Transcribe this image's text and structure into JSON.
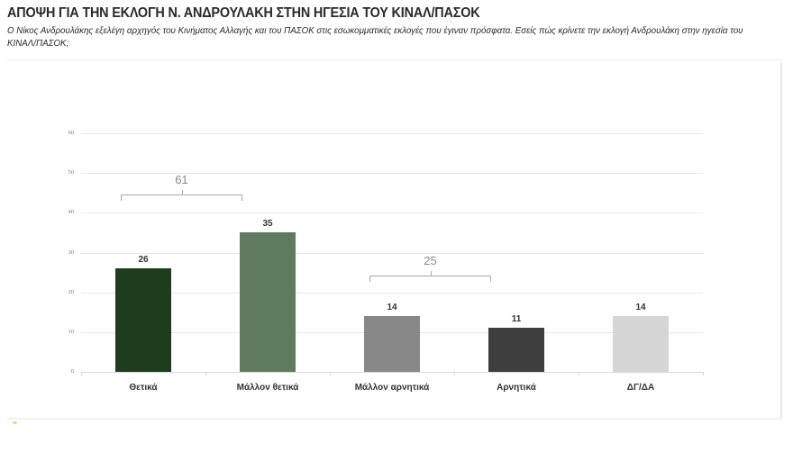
{
  "header": {
    "title": "ΑΠΟΨΗ ΓΙΑ ΤΗΝ ΕΚΛΟΓΗ Ν. ΑΝΔΡΟΥΛΑΚΗ ΣΤΗΝ ΗΓΕΣΙΑ ΤΟΥ ΚΙΝΑΛ/ΠΑΣΟΚ",
    "subtitle": "Ο Νίκος Ανδρουλάκης εξελέγη αρχηγός του Κινήματος Αλλαγής και του ΠΑΣΟΚ στις εσωκομματικές εκλογές που έγιναν πρόσφατα. Εσείς πώς κρίνετε την εκλογή Ανδρουλάκη στην ηγεσία του ΚΙΝΑΛ/ΠΑΣΟΚ;"
  },
  "chart_data": {
    "type": "bar",
    "title": "ΑΠΟΨΗ ΓΙΑ ΤΗΝ ΕΚΛΟΓΗ Ν. ΑΝΔΡΟΥΛΑΚΗ ΣΤΗΝ ΗΓΕΣΙΑ ΤΟΥ ΚΙΝΑΛ/ΠΑΣΟΚ",
    "subtitle": "Ο Νίκος Ανδρουλάκης εξελέγη αρχηγός του Κινήματος Αλλαγής και του ΠΑΣΟΚ στις εσωκομματικές εκλογές που έγιναν πρόσφατα. Εσείς πώς κρίνετε την εκλογή Ανδρουλάκη στην ηγεσία του ΚΙΝΑΛ/ΠΑΣΟΚ;",
    "categories": [
      "Θετικά",
      "Μάλλον θετικά",
      "Μάλλον αρνητικά",
      "Αρνητικά",
      "ΔΓ/ΔΑ"
    ],
    "values": [
      26,
      35,
      14,
      11,
      14
    ],
    "value_labels": [
      "26",
      "35",
      "14",
      "11",
      "14"
    ],
    "colors": [
      "#1e3d1e",
      "#5f7b5f",
      "#888888",
      "#3e3e3e",
      "#d6d6d6"
    ],
    "xlabel": "",
    "ylabel": "",
    "ylim": [
      0,
      60
    ],
    "yticks": [
      "0",
      "10",
      "20",
      "30",
      "40",
      "50",
      "60"
    ],
    "grid": true,
    "legend": null,
    "annotations": [
      {
        "type": "bracket",
        "spans": [
          "Θετικά",
          "Μάλλον θετικά"
        ],
        "label": "61"
      },
      {
        "type": "bracket",
        "spans": [
          "Μάλλον αρνητικά",
          "Αρνητικά"
        ],
        "label": "25"
      }
    ]
  }
}
